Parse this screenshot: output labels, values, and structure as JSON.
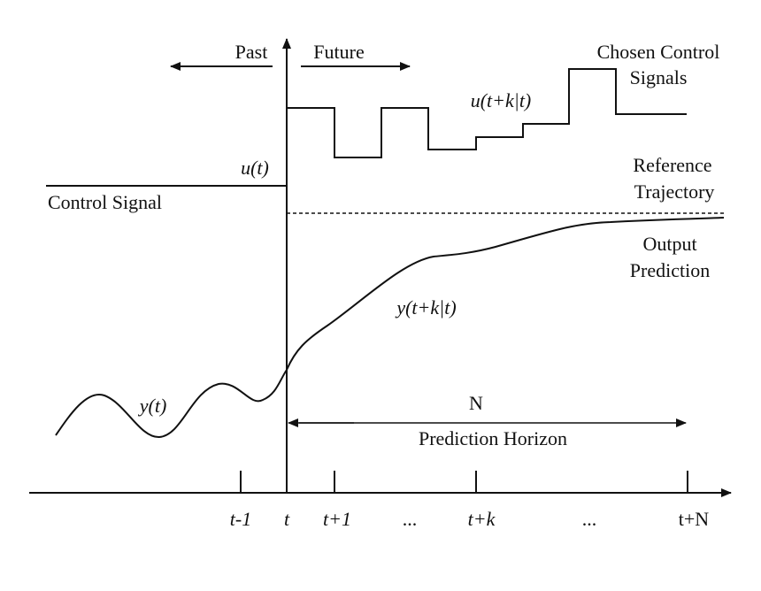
{
  "labels": {
    "past": "Past",
    "future": "Future",
    "chosen_line1": "Chosen Control",
    "chosen_line2": "Signals",
    "u_future": "u(t+k|t)",
    "u_t": "u(t)",
    "control_signal": "Control Signal",
    "reference_line1": "Reference",
    "reference_line2": "Trajectory",
    "output_line1": "Output",
    "output_line2": "Prediction",
    "y_future": "y(t+k|t)",
    "y_t": "y(t)",
    "horizon_n": "N",
    "horizon_label": "Prediction Horizon"
  },
  "axis": {
    "ticks": [
      "t-1",
      "t",
      "t+1",
      "...",
      "t+k",
      "...",
      "t+N"
    ]
  },
  "colors": {
    "line": "#111111",
    "background": "#ffffff"
  }
}
